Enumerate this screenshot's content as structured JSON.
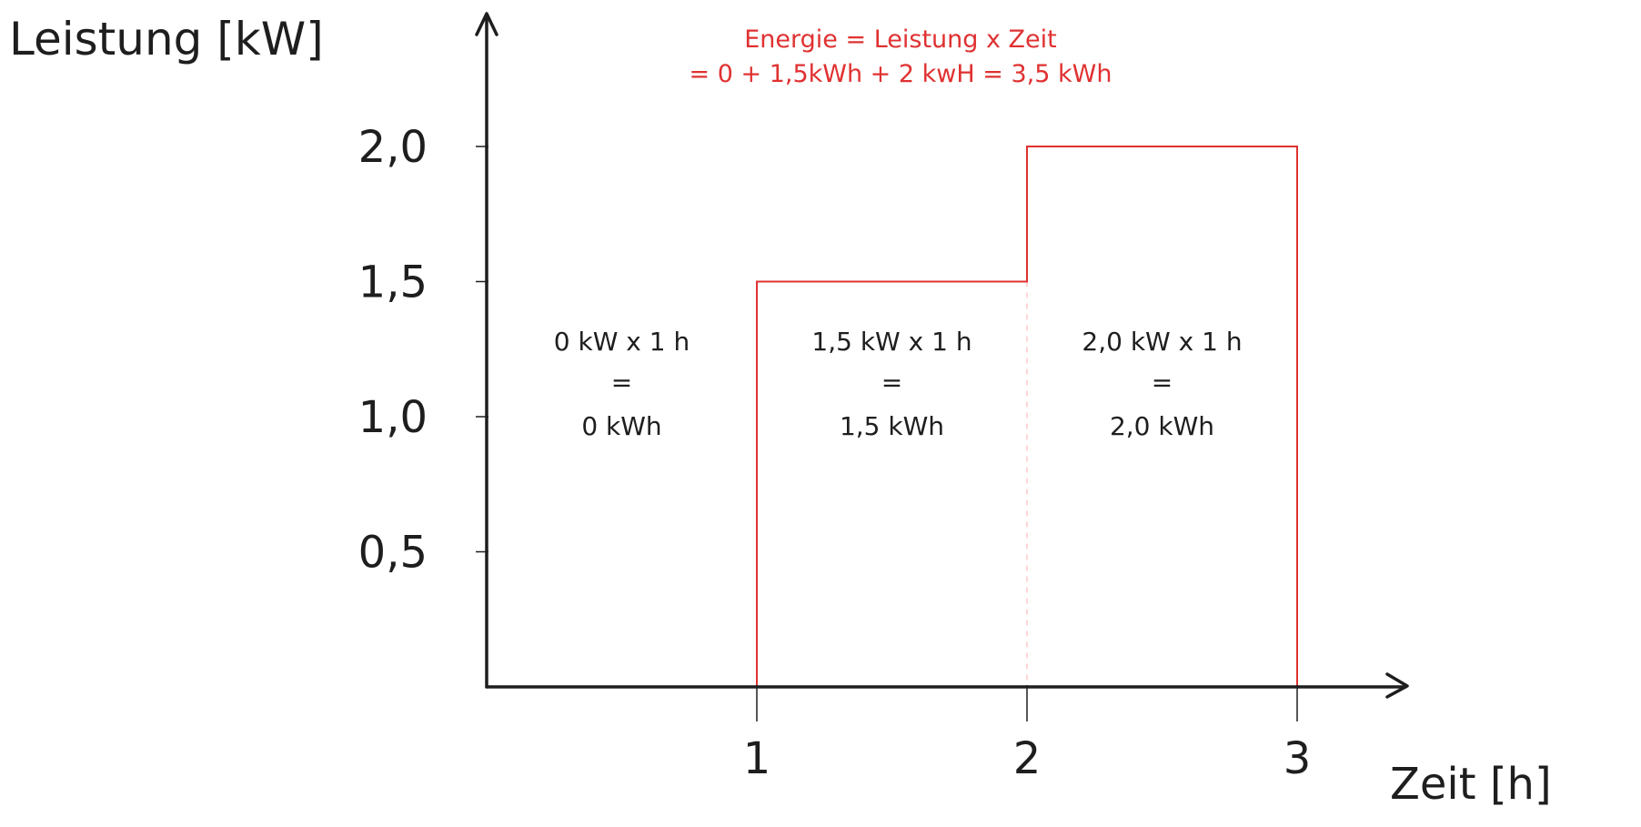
{
  "chart_data": {
    "type": "area",
    "xlabel": "Zeit [h]",
    "ylabel": "Leistung [kW]",
    "x_ticks": [
      "1",
      "2",
      "3"
    ],
    "y_ticks": [
      "0,5",
      "1,0",
      "1,5",
      "2,0"
    ],
    "xlim": [
      0,
      3.4
    ],
    "ylim": [
      0,
      2.0
    ],
    "series": [
      {
        "x": [
          0,
          1,
          1,
          2,
          2,
          3,
          3
        ],
        "y": [
          0,
          0,
          1.5,
          1.5,
          2.0,
          2.0,
          0
        ]
      }
    ],
    "intervals": [
      {
        "x_start": 0,
        "x_end": 1,
        "power_kw": 0,
        "line1": "0 kW x 1 h",
        "line2": "=",
        "line3": "0 kWh"
      },
      {
        "x_start": 1,
        "x_end": 2,
        "power_kw": 1.5,
        "line1": "1,5 kW x 1 h",
        "line2": "=",
        "line3": "1,5 kWh"
      },
      {
        "x_start": 2,
        "x_end": 3,
        "power_kw": 2.0,
        "line1": "2,0 kW x 1 h",
        "line2": "=",
        "line3": "2,0 kWh"
      }
    ],
    "annotation": {
      "line1": "Energie = Leistung x Zeit",
      "line2": "= 0 + 1,5kWh + 2 kwH = 3,5 kWh",
      "color": "#e03131"
    },
    "colors": {
      "axis": "#1e1e1e",
      "step_line": "#e03131",
      "divider": "#ffc9c9"
    },
    "grid": false
  }
}
